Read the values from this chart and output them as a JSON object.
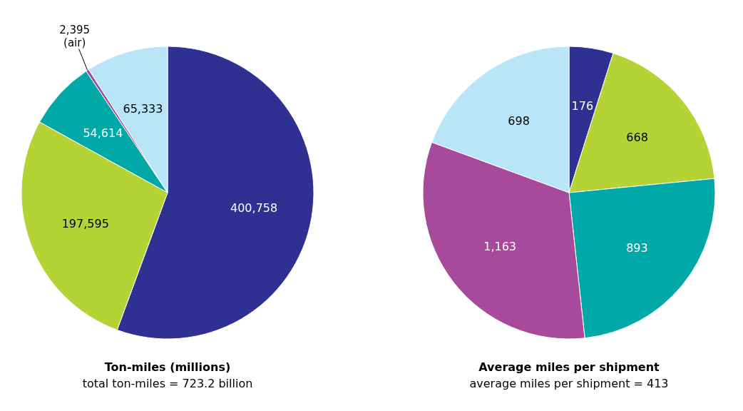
{
  "chart_data": [
    {
      "type": "pie",
      "title": "Ton-miles (millions)",
      "subtitle": "total ton-miles = 723.2 billion",
      "categories": [
        null,
        null,
        null,
        "(air)",
        null
      ],
      "values": [
        400758,
        197595,
        54614,
        2395,
        65333
      ],
      "value_labels": [
        "400,758",
        "197,595",
        "54,614",
        "2,395",
        "65,333"
      ],
      "colors": [
        "#2e3192",
        "#b5d334",
        "#00a8a8",
        "#a84a9c",
        "#b9e5f8"
      ]
    },
    {
      "type": "pie",
      "title": "Average miles per shipment",
      "subtitle": "average miles per shipment = 413",
      "categories": [
        null,
        null,
        null,
        null,
        null
      ],
      "values": [
        176,
        668,
        893,
        1163,
        698
      ],
      "value_labels": [
        "176",
        "668",
        "893",
        "1,163",
        "698"
      ],
      "colors": [
        "#2e3192",
        "#b5d334",
        "#00a8a8",
        "#a84a9c",
        "#b9e5f8"
      ]
    }
  ]
}
